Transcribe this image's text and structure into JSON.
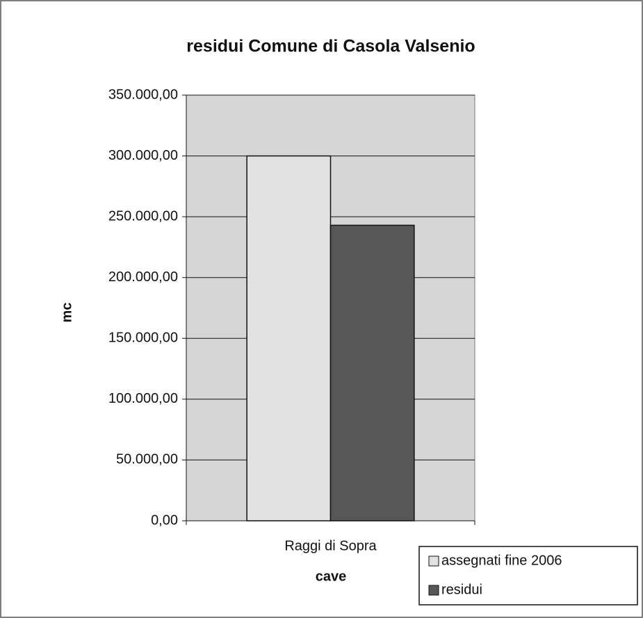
{
  "chart_data": {
    "type": "bar",
    "title": "residui Comune di Casola Valsenio",
    "x_label": "cave",
    "y_label": "mc",
    "categories": [
      "Raggi di Sopra"
    ],
    "series": [
      {
        "name": "assegnati fine 2006",
        "color": "#e2e2e2",
        "values": [
          300000
        ]
      },
      {
        "name": "residui",
        "color": "#575757",
        "values": [
          243000
        ]
      }
    ],
    "ylim": [
      0,
      350000
    ],
    "yticks": [
      {
        "value": 0,
        "label": "0,00"
      },
      {
        "value": 50000,
        "label": "50.000,00"
      },
      {
        "value": 100000,
        "label": "100.000,00"
      },
      {
        "value": 150000,
        "label": "150.000,00"
      },
      {
        "value": 200000,
        "label": "200.000,00"
      },
      {
        "value": 250000,
        "label": "250.000,00"
      },
      {
        "value": 300000,
        "label": "300.000,00"
      },
      {
        "value": 350000,
        "label": "350.000,00"
      }
    ],
    "grid": true,
    "legend": "bottom-right"
  }
}
